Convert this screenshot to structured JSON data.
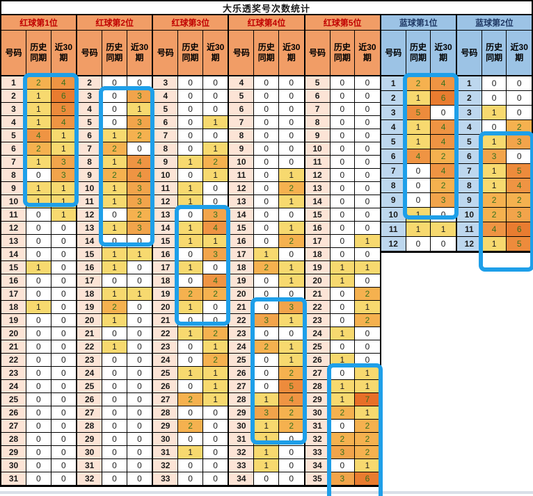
{
  "title": "大乐透奖号次数统计",
  "column_headers": {
    "number": "号码",
    "history": "历史同期",
    "recent30": "近30期"
  },
  "colors": {
    "red_header_bg": "#f19d66",
    "red_header_text": "#c00000",
    "red_subheader_text": "#000000",
    "red_number_bg": "#fce4d6",
    "blue_header_bg": "#9cc3e5",
    "blue_header_text": "#1f3864",
    "blue_number_bg": "#bdd7ee",
    "highlight_border": "#1e9fe9",
    "value_text_low": "#1a1a1a",
    "value_text_high": "#37711d",
    "value_scale": {
      "0": "#ffffff",
      "1": "#f7d96f",
      "2": "#f5b14f",
      "3": "#f2a44b",
      "4": "#ef9443",
      "5": "#ed8b3c",
      "6": "#e97c30",
      "7": "#e76f28"
    }
  },
  "groups": [
    {
      "label": "红球第1位",
      "type": "red",
      "start": 1,
      "history": [
        2,
        1,
        1,
        1,
        4,
        2,
        1,
        0,
        1,
        1,
        0,
        0,
        0,
        0,
        1,
        0,
        0,
        1,
        0,
        0,
        0,
        0,
        0,
        0,
        0,
        0,
        0,
        0,
        0,
        0,
        0
      ],
      "recent30": [
        4,
        6,
        5,
        4,
        1,
        1,
        3,
        3,
        1,
        1,
        1,
        0,
        0,
        0,
        0,
        0,
        0,
        0,
        0,
        0,
        0,
        0,
        0,
        0,
        0,
        0,
        0,
        0,
        0,
        0,
        0
      ],
      "highlight": {
        "from": 1,
        "to": 9
      }
    },
    {
      "label": "红球第2位",
      "type": "red",
      "start": 2,
      "history": [
        0,
        0,
        0,
        0,
        1,
        2,
        1,
        2,
        1,
        1,
        0,
        1,
        0,
        1,
        1,
        0,
        1,
        2,
        1,
        0,
        1,
        0,
        0,
        0,
        0,
        0,
        0,
        0,
        0,
        0,
        0
      ],
      "recent30": [
        0,
        3,
        1,
        3,
        2,
        0,
        4,
        4,
        3,
        3,
        2,
        3,
        0,
        1,
        0,
        0,
        1,
        0,
        0,
        0,
        0,
        0,
        0,
        0,
        0,
        0,
        0,
        0,
        0,
        0,
        0
      ],
      "highlight": {
        "from": 3,
        "to": 13
      }
    },
    {
      "label": "红球第3位",
      "type": "red",
      "start": 3,
      "history": [
        0,
        0,
        0,
        0,
        0,
        0,
        1,
        0,
        1,
        1,
        0,
        1,
        1,
        0,
        1,
        0,
        2,
        1,
        0,
        1,
        0,
        0,
        1,
        0,
        2,
        0,
        2,
        0,
        1,
        0,
        0
      ],
      "recent30": [
        0,
        0,
        0,
        1,
        0,
        1,
        2,
        1,
        0,
        0,
        3,
        4,
        1,
        3,
        0,
        4,
        2,
        0,
        0,
        2,
        1,
        2,
        1,
        1,
        1,
        0,
        0,
        0,
        0,
        0,
        0
      ],
      "highlight": {
        "from": 13,
        "to": 20
      }
    },
    {
      "label": "红球第4位",
      "type": "red",
      "start": 4,
      "history": [
        0,
        0,
        0,
        0,
        0,
        0,
        0,
        0,
        0,
        0,
        0,
        0,
        0,
        1,
        2,
        0,
        0,
        0,
        3,
        0,
        2,
        0,
        0,
        0,
        1,
        3,
        1,
        1,
        1,
        1,
        0
      ],
      "recent30": [
        0,
        0,
        0,
        0,
        0,
        0,
        0,
        1,
        2,
        1,
        0,
        1,
        2,
        0,
        1,
        1,
        0,
        3,
        1,
        0,
        1,
        1,
        2,
        5,
        4,
        2,
        2,
        0,
        0,
        0,
        0
      ],
      "highlight": {
        "from": 21,
        "to": 30
      }
    },
    {
      "label": "红球第5位",
      "type": "red",
      "start": 5,
      "history": [
        0,
        0,
        0,
        0,
        0,
        0,
        0,
        0,
        0,
        0,
        0,
        0,
        0,
        0,
        1,
        1,
        0,
        0,
        0,
        1,
        0,
        1,
        0,
        1,
        1,
        2,
        0,
        2,
        3,
        0,
        3
      ],
      "recent30": [
        0,
        0,
        0,
        0,
        0,
        0,
        0,
        0,
        0,
        0,
        0,
        0,
        1,
        0,
        1,
        0,
        2,
        1,
        2,
        0,
        0,
        0,
        1,
        1,
        7,
        1,
        2,
        2,
        2,
        1,
        6
      ],
      "highlight": {
        "from": 27,
        "to": 35,
        "extend_bottom": 6
      }
    },
    {
      "label": "蓝球第1位",
      "type": "blue",
      "start": 1,
      "history": [
        2,
        1,
        5,
        1,
        1,
        4,
        0,
        0,
        0,
        1,
        1,
        0
      ],
      "recent30": [
        4,
        6,
        0,
        4,
        4,
        2,
        4,
        2,
        3,
        0,
        1,
        0
      ],
      "highlight": {
        "from": 1,
        "to": 9
      }
    },
    {
      "label": "蓝球第2位",
      "type": "blue",
      "start": 1,
      "history": [
        0,
        0,
        1,
        0,
        1,
        3,
        1,
        1,
        2,
        2,
        4,
        1
      ],
      "recent30": [
        0,
        0,
        0,
        2,
        3,
        0,
        5,
        4,
        2,
        3,
        6,
        5
      ],
      "highlight": {
        "from": 5,
        "to": 12,
        "extend_bottom": 12
      }
    }
  ]
}
